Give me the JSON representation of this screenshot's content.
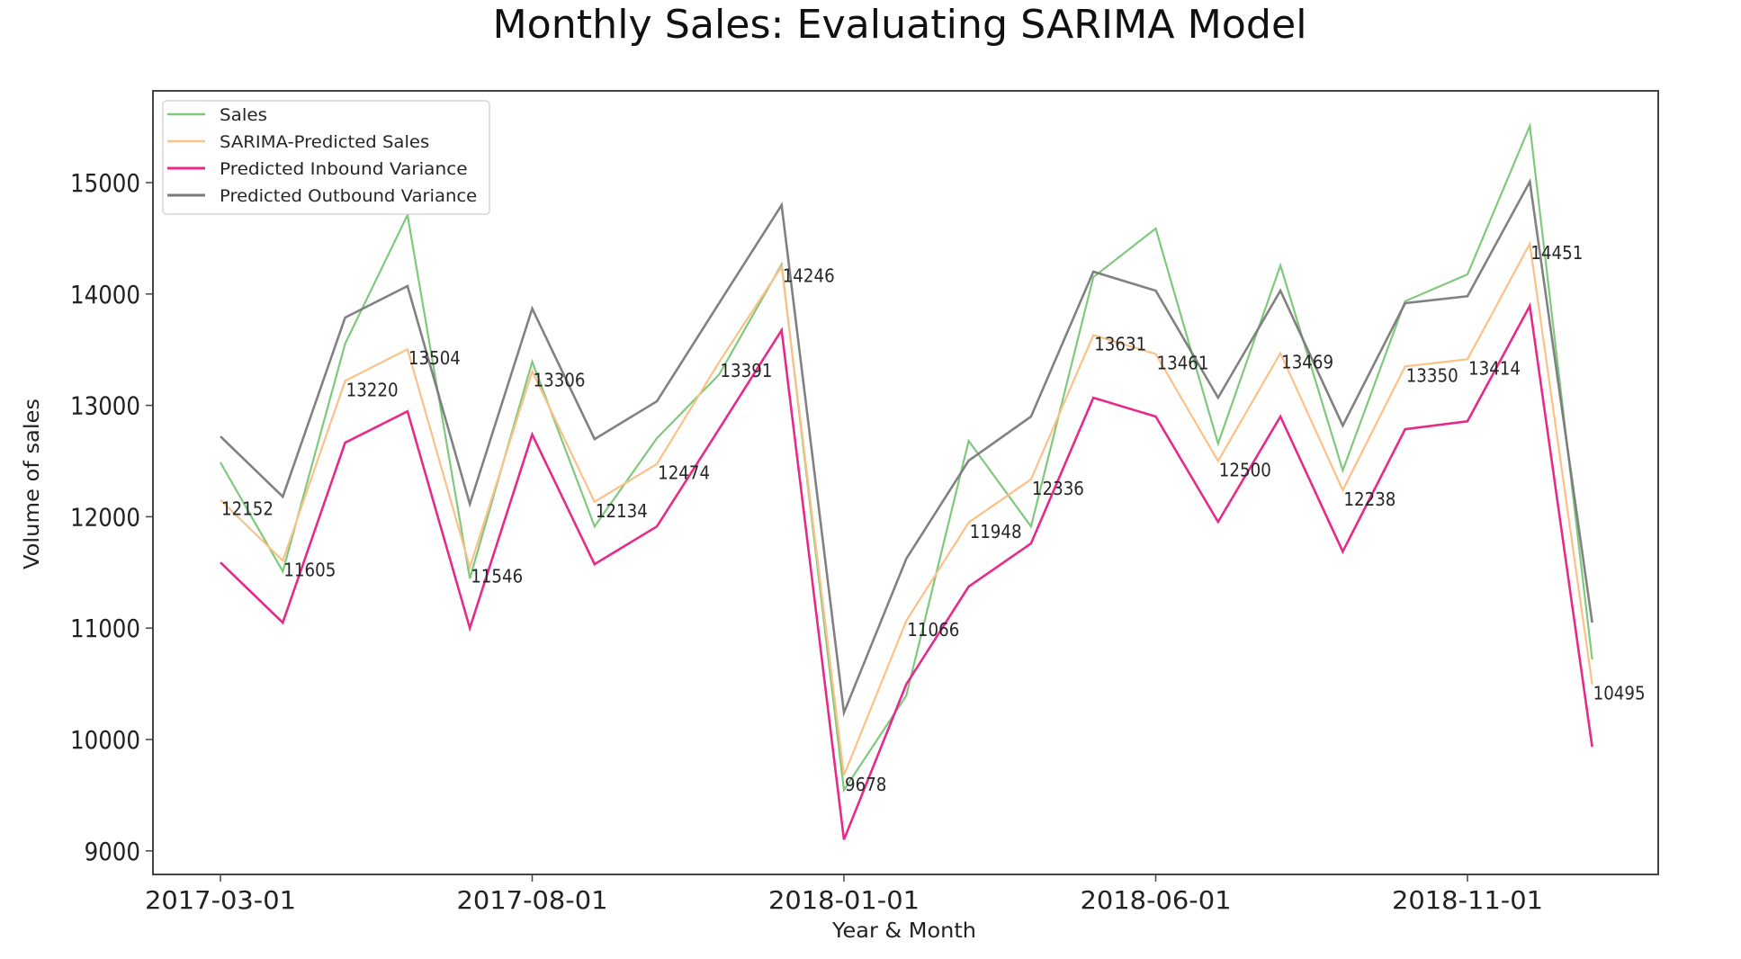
{
  "chart_data": {
    "type": "line",
    "title": "Monthly Sales: Evaluating SARIMA Model",
    "xlabel": "Year & Month",
    "ylabel": "Volume of sales",
    "ylim": [
      8800,
      15700
    ],
    "yticks": [
      9000,
      10000,
      11000,
      12000,
      13000,
      14000,
      15000
    ],
    "ytick_labels": [
      "9000",
      "10000",
      "11000",
      "12000",
      "13000",
      "14000",
      "15000"
    ],
    "xticks": [
      "2017-03-01",
      "2017-08-01",
      "2018-01-01",
      "2018-06-01",
      "2018-11-01"
    ],
    "xtick_labels": [
      "2017-03-01",
      "2017-08-01",
      "2018-01-01",
      "2018-06-01",
      "2018-11-01"
    ],
    "x": [
      "2017-03-01",
      "2017-04-01",
      "2017-05-01",
      "2017-06-01",
      "2017-07-01",
      "2017-08-01",
      "2017-09-01",
      "2017-10-01",
      "2017-11-01",
      "2017-12-01",
      "2018-01-01",
      "2018-02-01",
      "2018-03-01",
      "2018-04-01",
      "2018-05-01",
      "2018-06-01",
      "2018-07-01",
      "2018-08-01",
      "2018-09-01",
      "2018-10-01",
      "2018-11-01",
      "2018-12-01",
      "2019-01-01"
    ],
    "grid": false,
    "legend_position": "top-left",
    "series": [
      {
        "name": "Sales",
        "color": "#7fc97f",
        "width": 2.2,
        "values": [
          12487,
          11509,
          13554,
          14709,
          11445,
          13392,
          11913,
          12705,
          13279,
          14265,
          9546,
          10394,
          12681,
          11913,
          14152,
          14588,
          12657,
          14257,
          12416,
          13935,
          14176,
          15509,
          10718
        ]
      },
      {
        "name": "SARIMA-Predicted Sales",
        "color": "#fdc086",
        "width": 2.2,
        "values": [
          12152,
          11605,
          13220,
          13504,
          11546,
          13306,
          12134,
          12474,
          13391,
          14246,
          9678,
          11066,
          11948,
          12336,
          13631,
          13461,
          12500,
          13469,
          12238,
          13350,
          13414,
          14451,
          10495
        ],
        "data_labels": [
          "12152",
          "11605",
          "13220",
          "13504",
          "11546",
          "13306",
          "12134",
          "12474",
          "13391",
          "14246",
          "9678",
          "11066",
          "11948",
          "12336",
          "13631",
          "13461",
          "12500",
          "13469",
          "12238",
          "13350",
          "13414",
          "14451",
          "10495"
        ]
      },
      {
        "name": "Predicted Inbound Variance",
        "color": "#e7298a",
        "width": 2.6,
        "values": [
          11590,
          11049,
          12665,
          12947,
          11000,
          12738,
          11574,
          11913,
          12790,
          13675,
          9101,
          10496,
          11372,
          11760,
          13069,
          12900,
          11954,
          12900,
          11687,
          12786,
          12857,
          13893,
          9934
        ]
      },
      {
        "name": "Predicted Outbound Variance",
        "color": "#7a7a7a",
        "width": 2.6,
        "values": [
          12721,
          12180,
          13788,
          14071,
          12115,
          13869,
          12697,
          13036,
          13920,
          14798,
          10241,
          11623,
          12503,
          12900,
          14200,
          14030,
          13069,
          14030,
          12818,
          13918,
          13980,
          15008,
          11049
        ]
      }
    ]
  }
}
